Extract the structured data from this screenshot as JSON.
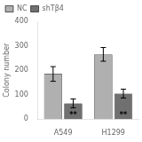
{
  "chart_data": {
    "type": "bar",
    "ylabel": "Colony number",
    "categories": [
      "A549",
      "H1299"
    ],
    "series": [
      {
        "name": "NC",
        "color": "#b0b0b0",
        "values": [
          185,
          265
        ],
        "errors": [
          30,
          28
        ]
      },
      {
        "name": "shTβ4",
        "color": "#707070",
        "values": [
          65,
          105
        ],
        "errors": [
          18,
          18
        ]
      }
    ],
    "ylim": [
      0,
      400
    ],
    "yticks": [
      0,
      100,
      200,
      300,
      400
    ],
    "grid": false,
    "legend": "upper left",
    "annotations": [
      {
        "text": "**",
        "category": "A549",
        "series": "shTβ4",
        "y": 2
      },
      {
        "text": "**",
        "category": "H1299",
        "series": "shTβ4",
        "y": 2
      }
    ]
  }
}
